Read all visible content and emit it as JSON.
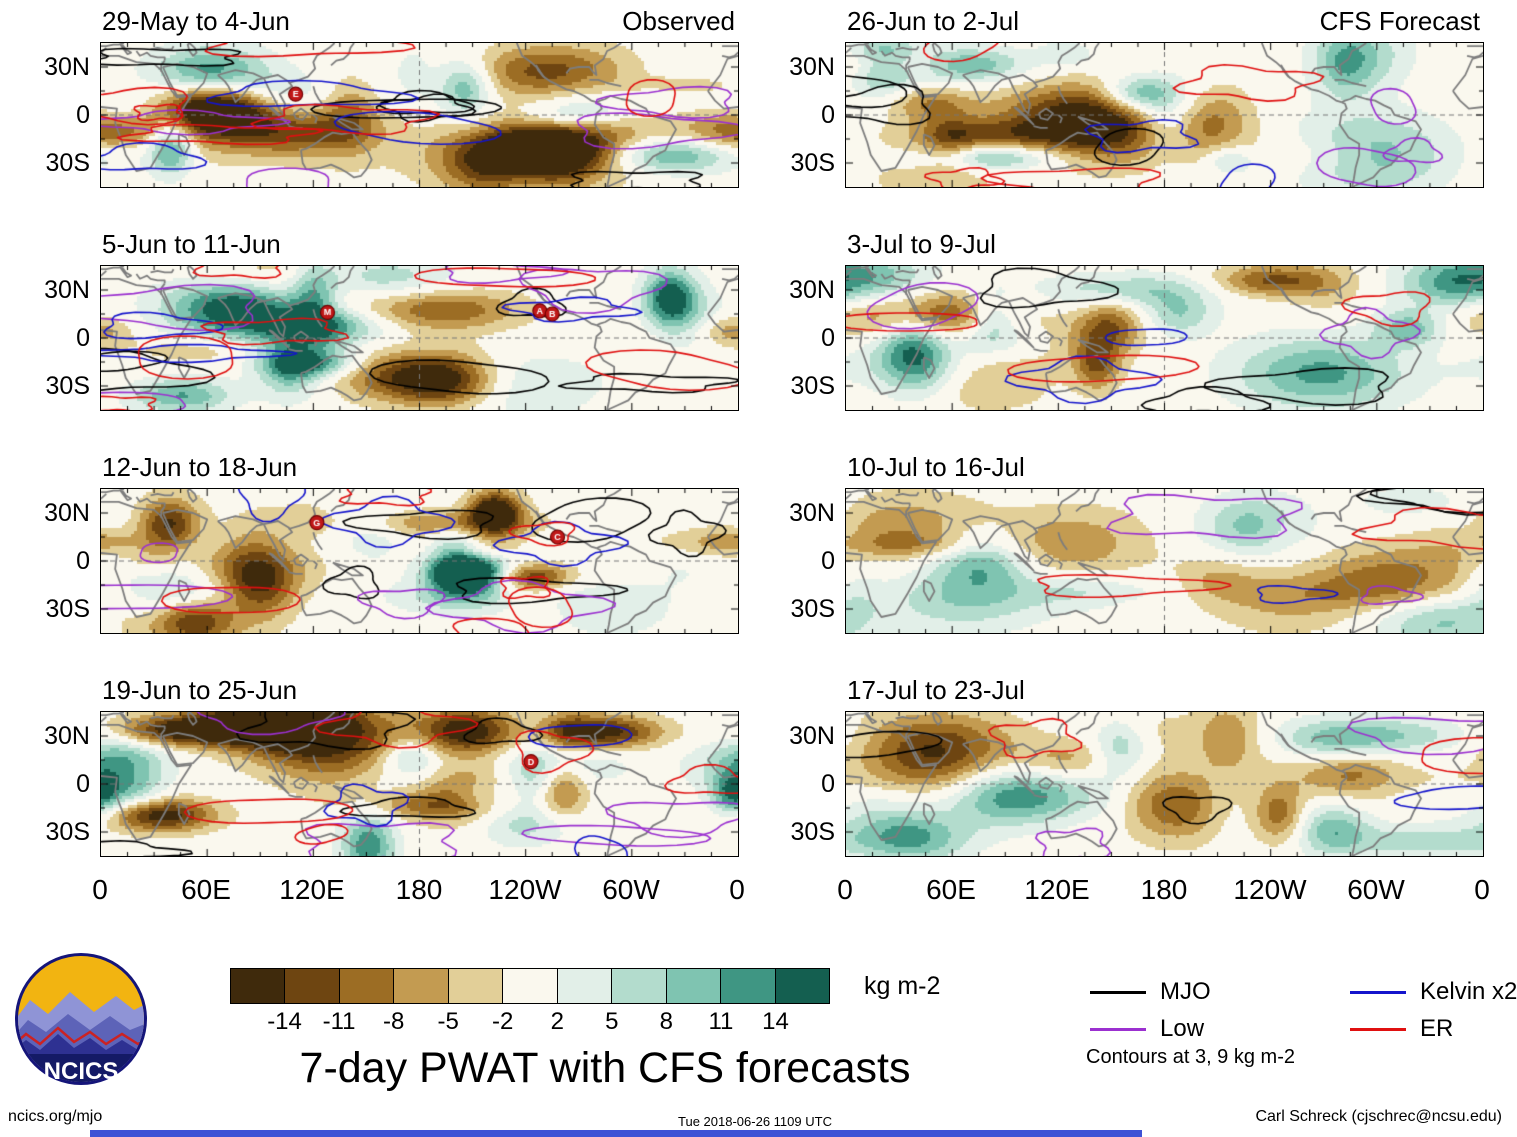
{
  "chart_data": {
    "type": "heatmap",
    "title": "7-day PWAT with CFS forecasts",
    "units": "kg m-2",
    "columns": [
      "Observed",
      "CFS Forecast"
    ],
    "x_axis": {
      "ticks": [
        "0",
        "60E",
        "120E",
        "180",
        "120W",
        "60W",
        "0"
      ],
      "range_deg": [
        0,
        360
      ]
    },
    "y_axis": {
      "ticks": [
        "30N",
        "0",
        "30S"
      ],
      "range_deg": [
        -45,
        45
      ]
    },
    "color_levels": [
      -14,
      -11,
      -8,
      -5,
      -2,
      2,
      5,
      8,
      11,
      14
    ],
    "palette": [
      "#3f2a0c",
      "#6e4511",
      "#9c6d24",
      "#c39b51",
      "#e2cf98",
      "#faf8ee",
      "#e2efe8",
      "#b3dccd",
      "#7fc4b1",
      "#3f9683",
      "#145f50"
    ],
    "overlay_contours": {
      "note": "Contours at 3, 9 kg m-2",
      "series": [
        {
          "name": "MJO",
          "color": "#000000"
        },
        {
          "name": "Low",
          "color": "#9b30d0"
        },
        {
          "name": "Kelvin x2",
          "color": "#1414cc"
        },
        {
          "name": "ER",
          "color": "#e01010"
        }
      ]
    },
    "panel_grid": {
      "rows": 4,
      "cols": 2
    },
    "panels": [
      {
        "column": "Observed",
        "title": "29-May to 4-Jun",
        "storm_labels": [
          {
            "label": "E",
            "lon_deg": 110,
            "lat_deg": 13
          }
        ]
      },
      {
        "column": "Observed",
        "title": "5-Jun to 11-Jun",
        "storm_labels": [
          {
            "label": "M",
            "lon_deg": 128,
            "lat_deg": 16
          },
          {
            "label": "A",
            "lon_deg": 248,
            "lat_deg": 17
          },
          {
            "label": "B",
            "lon_deg": 255,
            "lat_deg": 15
          }
        ]
      },
      {
        "column": "Observed",
        "title": "12-Jun to 18-Jun",
        "storm_labels": [
          {
            "label": "G",
            "lon_deg": 122,
            "lat_deg": 24
          },
          {
            "label": "C",
            "lon_deg": 258,
            "lat_deg": 15
          }
        ]
      },
      {
        "column": "Observed",
        "title": "19-Jun to 25-Jun",
        "storm_labels": [
          {
            "label": "D",
            "lon_deg": 243,
            "lat_deg": 14
          }
        ]
      },
      {
        "column": "CFS Forecast",
        "title": "26-Jun to 2-Jul",
        "storm_labels": []
      },
      {
        "column": "CFS Forecast",
        "title": "3-Jul to 9-Jul",
        "storm_labels": []
      },
      {
        "column": "CFS Forecast",
        "title": "10-Jul to 16-Jul",
        "storm_labels": []
      },
      {
        "column": "CFS Forecast",
        "title": "17-Jul to 23-Jul",
        "storm_labels": []
      }
    ]
  },
  "logo": {
    "text": "NCICS"
  },
  "footer": {
    "left": "ncics.org/mjo",
    "center": "Tue 2018-06-26 1109 UTC",
    "right": "Carl Schreck (cjschrec@ncsu.edu)"
  }
}
